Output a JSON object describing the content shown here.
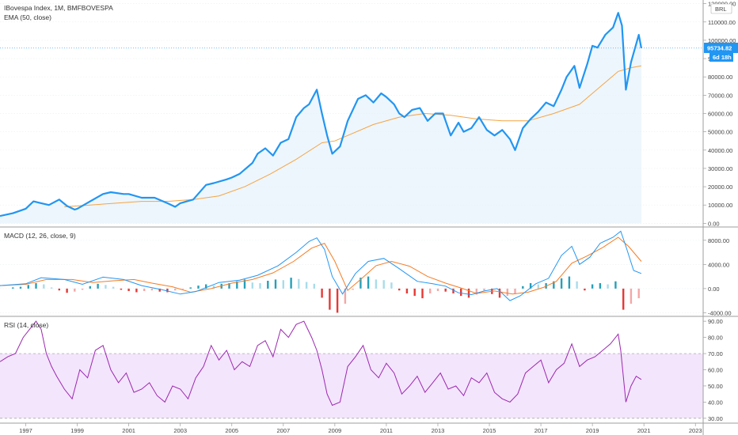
{
  "chart_data": [
    {
      "panel": "price",
      "type": "line",
      "title": "IBovespa Index, 1M, BMFBOVESPA",
      "indicator_label": "EMA (50, close)",
      "currency_label": "BRL",
      "last_value_label": "95734.82",
      "countdown_label": "6d 18h",
      "ylim": [
        -2000,
        122000
      ],
      "yticks": [
        0,
        10000,
        20000,
        30000,
        40000,
        50000,
        60000,
        70000,
        80000,
        90000,
        100000,
        110000,
        120000
      ],
      "ytick_labels": [
        "0.00",
        "10000.00",
        "20000.00",
        "30000.00",
        "40000.00",
        "50000.00",
        "60000.00",
        "70000.00",
        "80000.00",
        "90000.00",
        "100000.00",
        "110000.00",
        "120000.00"
      ],
      "colors": {
        "price": "#2196f3",
        "ema": "#f5a442",
        "fill": "#e3f0fb"
      },
      "series": [
        {
          "name": "IBovespa",
          "x": [
            1996.0,
            1996.5,
            1997.0,
            1997.3,
            1997.6,
            1997.9,
            1998.3,
            1998.6,
            1998.9,
            1999.0,
            1999.5,
            2000.0,
            2000.3,
            2000.8,
            2001.0,
            2001.5,
            2002.0,
            2002.5,
            2002.8,
            2003.0,
            2003.5,
            2004.0,
            2004.3,
            2004.8,
            2005.0,
            2005.3,
            2005.8,
            2006.0,
            2006.3,
            2006.6,
            2006.9,
            2007.2,
            2007.5,
            2007.8,
            2008.0,
            2008.3,
            2008.5,
            2008.7,
            2008.9,
            2009.2,
            2009.5,
            2009.9,
            2010.2,
            2010.5,
            2010.8,
            2011.0,
            2011.3,
            2011.5,
            2011.7,
            2012.0,
            2012.3,
            2012.6,
            2012.9,
            2013.2,
            2013.5,
            2013.8,
            2014.0,
            2014.3,
            2014.6,
            2014.9,
            2015.2,
            2015.5,
            2015.8,
            2016.0,
            2016.3,
            2016.6,
            2016.9,
            2017.2,
            2017.5,
            2017.8,
            2018.0,
            2018.3,
            2018.5,
            2018.8,
            2019.0,
            2019.2,
            2019.5,
            2019.8,
            2020.0,
            2020.15,
            2020.3,
            2020.5,
            2020.8,
            2020.9
          ],
          "y": [
            4000,
            5500,
            8000,
            12000,
            11000,
            10000,
            13000,
            9500,
            7500,
            8000,
            12000,
            16000,
            17000,
            16000,
            16000,
            14000,
            14000,
            11000,
            9000,
            11000,
            13000,
            21000,
            22000,
            24000,
            25000,
            27000,
            33000,
            38000,
            41000,
            37000,
            44000,
            46000,
            58000,
            63000,
            65000,
            73000,
            60000,
            48000,
            38000,
            42000,
            56000,
            68000,
            70000,
            66000,
            71000,
            69000,
            65000,
            60000,
            58000,
            62000,
            63000,
            56000,
            60000,
            60000,
            48000,
            55000,
            50000,
            52000,
            58000,
            51000,
            48000,
            51000,
            46000,
            40000,
            52000,
            57000,
            61000,
            66000,
            64000,
            73000,
            80000,
            86000,
            74000,
            87000,
            97000,
            96000,
            103000,
            107000,
            115000,
            108000,
            73000,
            88000,
            103000,
            95734
          ]
        },
        {
          "name": "EMA (50, close)",
          "x": [
            1998.5,
            1999.5,
            2000.5,
            2001.5,
            2002.5,
            2003.5,
            2004.5,
            2005.5,
            2006.5,
            2007.5,
            2008.5,
            2009.0,
            2009.5,
            2010.5,
            2011.5,
            2012.5,
            2013.5,
            2014.5,
            2015.5,
            2016.5,
            2017.5,
            2018.5,
            2019.5,
            2020.0,
            2020.5,
            2020.9
          ],
          "y": [
            9000,
            10000,
            11000,
            12000,
            12000,
            13000,
            15000,
            20000,
            27000,
            35000,
            44000,
            45000,
            48000,
            54000,
            58000,
            60000,
            59000,
            57000,
            56000,
            56000,
            60000,
            65000,
            77000,
            83000,
            85000,
            86000
          ]
        }
      ]
    },
    {
      "panel": "macd",
      "type": "line",
      "title": "MACD (12, 26, close, 9)",
      "ylim": [
        -4600,
        10200
      ],
      "yticks": [
        -4000,
        0,
        4000,
        8000
      ],
      "ytick_labels": [
        "-4000.00",
        "0.00",
        "4000.00",
        "8000.00"
      ],
      "colors": {
        "macd": "#2196f3",
        "signal": "#f57c24",
        "hist_up_strong": "#26a0b8",
        "hist_up_weak": "#a8dcea",
        "hist_down_strong": "#e53935",
        "hist_down_weak": "#f4a7a6"
      },
      "series": [
        {
          "name": "MACD",
          "x": [
            1996.0,
            1997.0,
            1997.6,
            1998.5,
            1999.2,
            2000.0,
            2000.8,
            2001.5,
            2002.3,
            2003.0,
            2003.6,
            2004.5,
            2005.3,
            2006.0,
            2006.8,
            2007.5,
            2008.0,
            2008.3,
            2008.6,
            2008.9,
            2009.3,
            2009.8,
            2010.3,
            2010.9,
            2011.5,
            2012.2,
            2012.8,
            2013.3,
            2013.8,
            2014.3,
            2014.8,
            2015.3,
            2015.8,
            2016.2,
            2016.8,
            2017.3,
            2017.8,
            2018.2,
            2018.5,
            2018.9,
            2019.3,
            2019.8,
            2020.1,
            2020.3,
            2020.6,
            2020.9
          ],
          "y": [
            500,
            800,
            1800,
            1500,
            700,
            1900,
            1500,
            500,
            -200,
            -900,
            -500,
            1000,
            1400,
            2200,
            3800,
            6000,
            7800,
            8400,
            6500,
            2000,
            -900,
            2500,
            4500,
            5000,
            3300,
            1200,
            800,
            400,
            -700,
            -1000,
            -400,
            0,
            -2000,
            -1200,
            800,
            1700,
            5500,
            7000,
            4000,
            5200,
            7500,
            8500,
            9500,
            7000,
            3000,
            2500
          ]
        },
        {
          "name": "Signal",
          "x": [
            1996.0,
            1997.0,
            1997.8,
            1998.8,
            1999.6,
            2000.4,
            2001.2,
            2001.9,
            2002.7,
            2003.4,
            2004.2,
            2005.0,
            2005.8,
            2006.6,
            2007.4,
            2008.1,
            2008.6,
            2009.0,
            2009.5,
            2010.0,
            2010.6,
            2011.2,
            2011.9,
            2012.6,
            2013.3,
            2013.9,
            2014.5,
            2015.2,
            2015.9,
            2016.5,
            2017.1,
            2017.6,
            2018.2,
            2018.8,
            2019.4,
            2020.0,
            2020.4,
            2020.9
          ],
          "y": [
            500,
            700,
            1500,
            1500,
            1000,
            1300,
            1500,
            900,
            300,
            -600,
            0,
            900,
            1500,
            2600,
            4500,
            6700,
            7500,
            4500,
            -300,
            1500,
            3800,
            4500,
            3700,
            2000,
            900,
            100,
            -800,
            -400,
            -900,
            -600,
            200,
            1200,
            4200,
            5400,
            6800,
            8500,
            7000,
            4500
          ]
        }
      ],
      "histogram": {
        "x": [
          1996.5,
          1996.8,
          1997.1,
          1997.4,
          1997.7,
          1998.0,
          1998.3,
          1998.6,
          1998.9,
          1999.2,
          1999.5,
          1999.8,
          2000.1,
          2000.4,
          2000.7,
          2001.0,
          2001.3,
          2001.6,
          2001.9,
          2002.2,
          2002.5,
          2002.8,
          2003.1,
          2003.4,
          2003.7,
          2004.0,
          2004.3,
          2004.6,
          2004.9,
          2005.2,
          2005.5,
          2005.8,
          2006.1,
          2006.4,
          2006.7,
          2007.0,
          2007.3,
          2007.6,
          2007.9,
          2008.2,
          2008.5,
          2008.8,
          2009.1,
          2009.4,
          2009.7,
          2010.0,
          2010.3,
          2010.6,
          2010.9,
          2011.2,
          2011.5,
          2011.8,
          2012.1,
          2012.4,
          2012.7,
          2013.0,
          2013.3,
          2013.6,
          2013.9,
          2014.2,
          2014.5,
          2014.8,
          2015.1,
          2015.4,
          2015.7,
          2016.0,
          2016.3,
          2016.6,
          2016.9,
          2017.2,
          2017.5,
          2017.8,
          2018.1,
          2018.4,
          2018.7,
          2019.0,
          2019.3,
          2019.6,
          2019.9,
          2020.2,
          2020.5,
          2020.8
        ],
        "y": [
          200,
          300,
          600,
          900,
          700,
          200,
          -300,
          -700,
          -500,
          -200,
          400,
          800,
          600,
          300,
          -200,
          -400,
          -600,
          -400,
          -300,
          -500,
          -600,
          -300,
          -100,
          200,
          500,
          700,
          500,
          800,
          900,
          1200,
          1500,
          1000,
          900,
          1300,
          1500,
          1400,
          1800,
          1600,
          1100,
          800,
          -1500,
          -3500,
          -4000,
          -2500,
          -200,
          1800,
          2000,
          1500,
          1400,
          1000,
          -300,
          -800,
          -1200,
          -1600,
          -800,
          -400,
          -500,
          -800,
          -1200,
          -1500,
          -1000,
          -300,
          -900,
          -1500,
          -1200,
          -800,
          400,
          900,
          700,
          900,
          1200,
          1700,
          2000,
          1200,
          -300,
          700,
          900,
          700,
          1200,
          -3500,
          -2500,
          -1600
        ]
      }
    },
    {
      "panel": "rsi",
      "type": "line",
      "title": "RSI (14, close)",
      "ylim": [
        27,
        93
      ],
      "yticks": [
        30,
        40,
        50,
        60,
        70,
        80,
        90
      ],
      "ytick_labels": [
        "30.00",
        "40.00",
        "50.00",
        "60.00",
        "70.00",
        "80.00",
        "90.00"
      ],
      "band": [
        30,
        70
      ],
      "colors": {
        "rsi": "#9c27b0",
        "band": "#f3e5fc"
      },
      "series": [
        {
          "name": "RSI",
          "x": [
            1996.0,
            1996.3,
            1996.6,
            1996.9,
            1997.2,
            1997.4,
            1997.6,
            1997.8,
            1998.0,
            1998.2,
            1998.5,
            1998.8,
            1999.1,
            1999.4,
            1999.7,
            2000.0,
            2000.3,
            2000.6,
            2000.9,
            2001.2,
            2001.5,
            2001.8,
            2002.1,
            2002.4,
            2002.7,
            2003.0,
            2003.3,
            2003.6,
            2003.9,
            2004.2,
            2004.5,
            2004.8,
            2005.1,
            2005.4,
            2005.7,
            2006.0,
            2006.3,
            2006.6,
            2006.9,
            2007.2,
            2007.5,
            2007.8,
            2008.1,
            2008.3,
            2008.5,
            2008.7,
            2008.9,
            2009.2,
            2009.5,
            2009.8,
            2010.1,
            2010.4,
            2010.7,
            2011.0,
            2011.3,
            2011.6,
            2011.9,
            2012.2,
            2012.5,
            2012.8,
            2013.1,
            2013.4,
            2013.7,
            2014.0,
            2014.3,
            2014.6,
            2014.9,
            2015.2,
            2015.5,
            2015.8,
            2016.1,
            2016.4,
            2016.7,
            2017.0,
            2017.3,
            2017.6,
            2017.9,
            2018.2,
            2018.5,
            2018.8,
            2019.1,
            2019.4,
            2019.7,
            2020.0,
            2020.1,
            2020.3,
            2020.5,
            2020.7,
            2020.9
          ],
          "y": [
            65,
            68,
            70,
            80,
            86,
            90,
            85,
            70,
            62,
            56,
            48,
            42,
            60,
            55,
            72,
            75,
            60,
            52,
            58,
            46,
            48,
            52,
            44,
            40,
            50,
            48,
            42,
            55,
            62,
            75,
            66,
            72,
            60,
            65,
            62,
            75,
            78,
            68,
            85,
            80,
            88,
            90,
            80,
            72,
            60,
            45,
            38,
            40,
            62,
            68,
            75,
            60,
            55,
            64,
            58,
            45,
            50,
            56,
            46,
            52,
            58,
            48,
            50,
            44,
            55,
            52,
            58,
            46,
            42,
            40,
            45,
            58,
            62,
            66,
            52,
            60,
            64,
            76,
            62,
            66,
            68,
            72,
            76,
            82,
            72,
            40,
            50,
            56,
            54
          ]
        }
      ]
    }
  ],
  "xaxis": {
    "tick_values": [
      1997,
      1999,
      2001,
      2003,
      2005,
      2007,
      2009,
      2011,
      2013,
      2015,
      2017,
      2019,
      2021,
      2023
    ],
    "tick_labels": [
      "1997",
      "1999",
      "2001",
      "2003",
      "2005",
      "2007",
      "2009",
      "2011",
      "2013",
      "2015",
      "2017",
      "2019",
      "2021",
      "2023"
    ],
    "range": [
      1996.0,
      2023.3
    ]
  }
}
